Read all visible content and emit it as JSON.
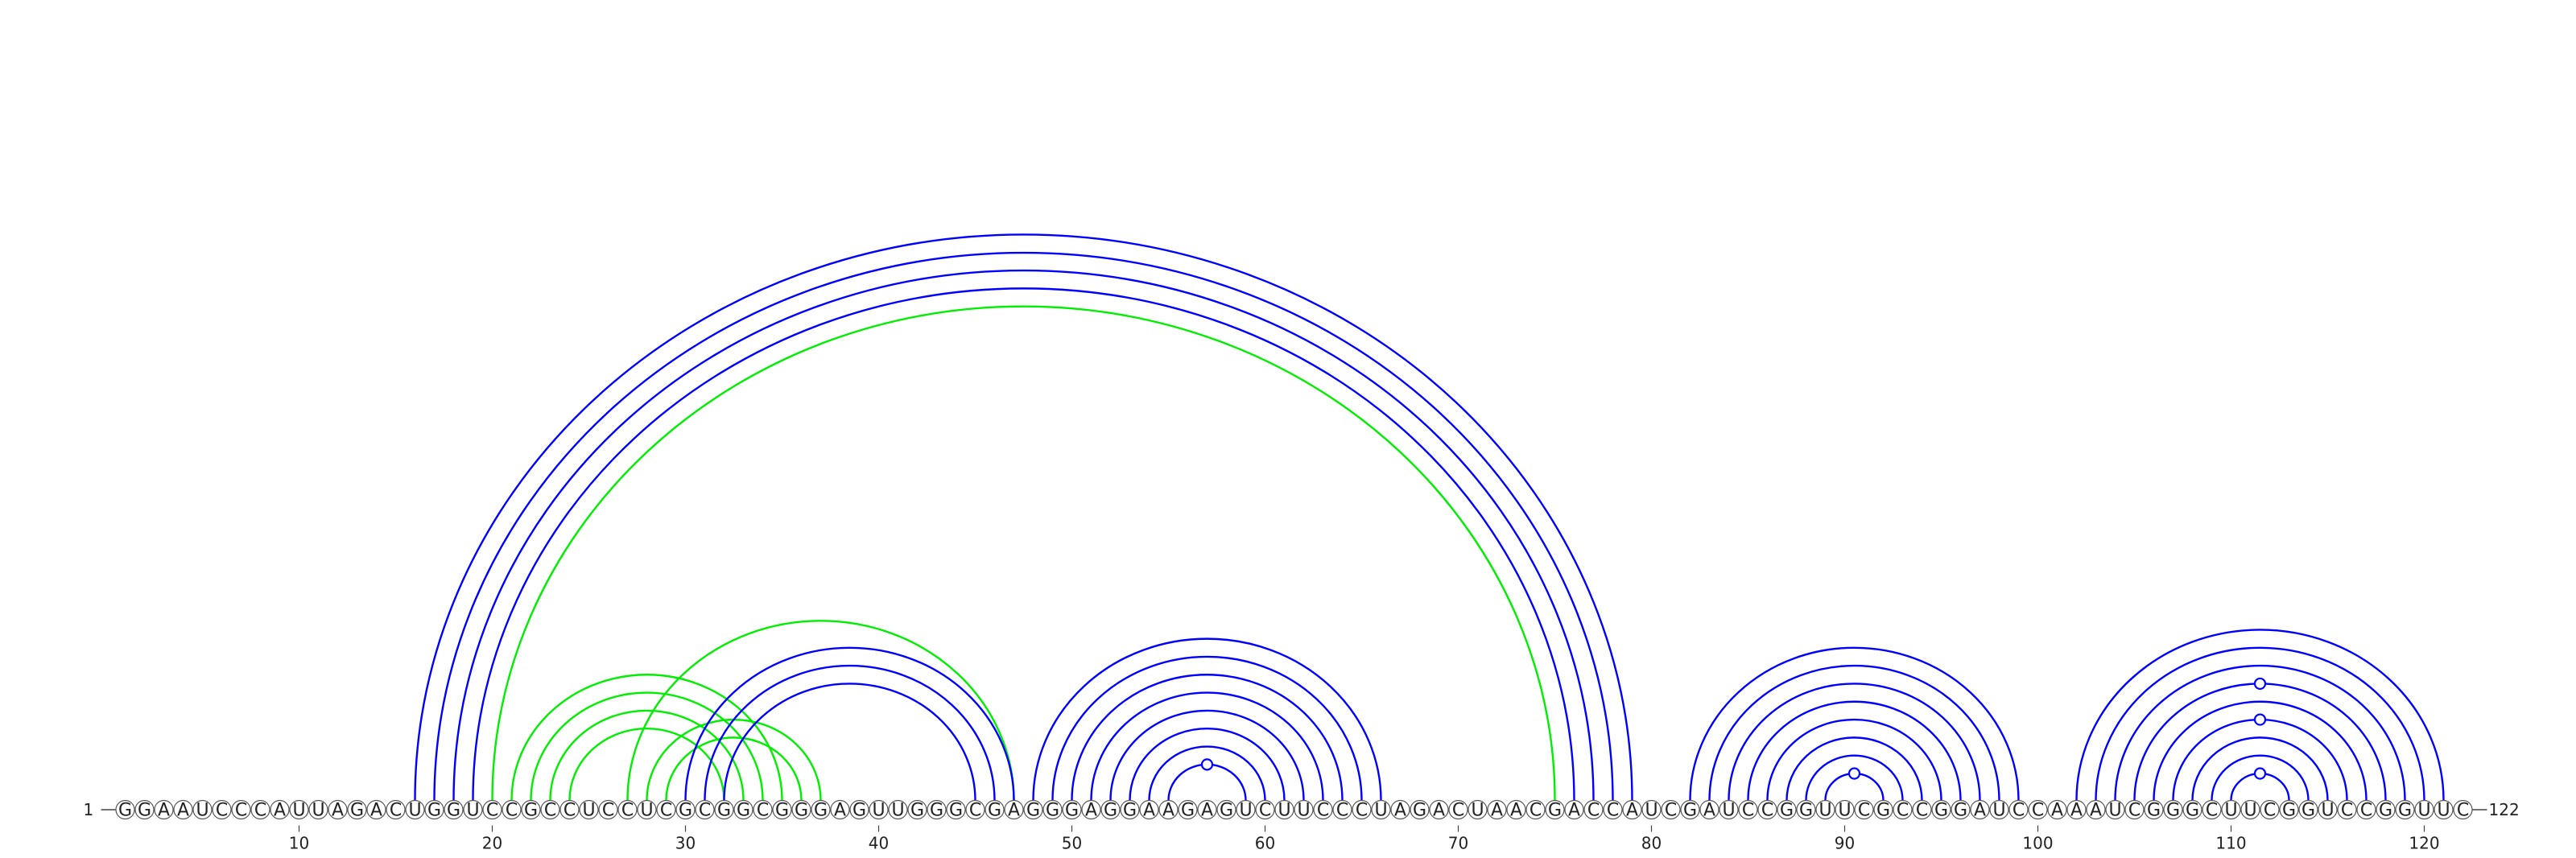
{
  "diagram": {
    "sequence": "GGAAUCCCAUUAGACUGGUCCGCCUCCUCGCGGCGGGAGUUGGGCGAGGGAGGAAGAGUCUUCCCUAGACUAACGACCAUCGAUCCGGUUCGCCGGAUCCAAAUCGGGCUUCGGUCCGGUUC",
    "start_label": "1",
    "end_label": "122",
    "tick_labels": [
      "10",
      "20",
      "30",
      "40",
      "50",
      "60",
      "70",
      "80",
      "90",
      "100",
      "110",
      "120"
    ],
    "tick_positions": [
      10,
      20,
      30,
      40,
      50,
      60,
      70,
      80,
      90,
      100,
      110,
      120
    ],
    "colors": {
      "primary_pairs": "#0000ff",
      "alternative_pairs": "#00ee00"
    },
    "primary_pairs": [
      [
        16,
        79
      ],
      [
        17,
        78
      ],
      [
        18,
        77
      ],
      [
        19,
        76
      ],
      [
        30,
        47
      ],
      [
        31,
        46
      ],
      [
        32,
        45
      ],
      [
        48,
        66
      ],
      [
        49,
        65
      ],
      [
        50,
        64
      ],
      [
        51,
        63
      ],
      [
        52,
        62
      ],
      [
        53,
        61
      ],
      [
        54,
        60
      ],
      [
        55,
        59
      ],
      [
        82,
        99
      ],
      [
        83,
        98
      ],
      [
        84,
        97
      ],
      [
        85,
        96
      ],
      [
        86,
        95
      ],
      [
        87,
        94
      ],
      [
        88,
        93
      ],
      [
        89,
        92
      ],
      [
        102,
        121
      ],
      [
        103,
        120
      ],
      [
        104,
        119
      ],
      [
        105,
        118
      ],
      [
        106,
        117
      ],
      [
        107,
        116
      ],
      [
        108,
        115
      ],
      [
        109,
        114
      ],
      [
        110,
        113
      ]
    ],
    "alternative_pairs": [
      [
        20,
        75
      ],
      [
        21,
        35
      ],
      [
        22,
        34
      ],
      [
        23,
        33
      ],
      [
        24,
        32
      ],
      [
        27,
        47
      ],
      [
        28,
        37
      ],
      [
        29,
        36
      ]
    ],
    "noncanonical_marks": [
      {
        "i": 55,
        "j": 59
      },
      {
        "i": 89,
        "j": 92
      },
      {
        "i": 105,
        "j": 118
      },
      {
        "i": 107,
        "j": 116
      },
      {
        "i": 110,
        "j": 113
      }
    ]
  }
}
